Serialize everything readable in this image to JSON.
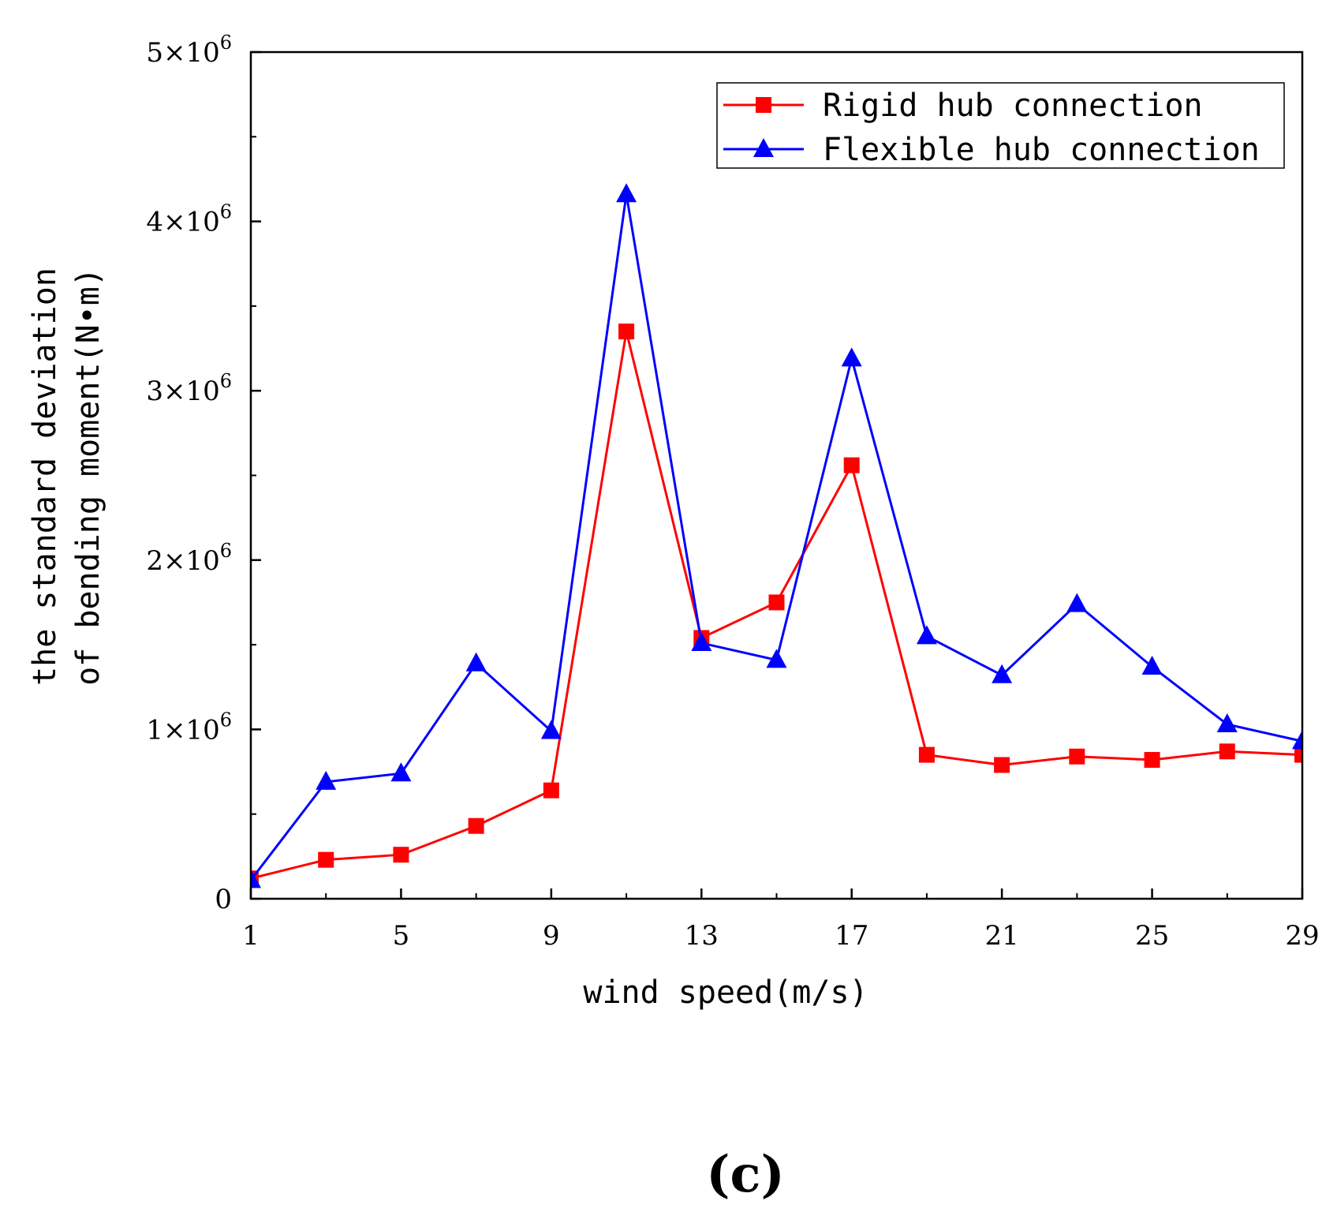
{
  "chart_data": {
    "type": "line",
    "panel_label": "(c)",
    "xlabel": "wind speed(m/s)",
    "ylabel_line1": "the standard deviation",
    "ylabel_line2": "of bending moment(N•m)",
    "x": [
      1,
      3,
      5,
      7,
      9,
      11,
      13,
      15,
      17,
      19,
      21,
      23,
      25,
      27,
      29
    ],
    "xlim": [
      1,
      29
    ],
    "ylim": [
      0,
      5000000
    ],
    "xticks": [
      {
        "value": 1,
        "label": "1"
      },
      {
        "value": 5,
        "label": "5"
      },
      {
        "value": 9,
        "label": "9"
      },
      {
        "value": 13,
        "label": "13"
      },
      {
        "value": 17,
        "label": "17"
      },
      {
        "value": 21,
        "label": "21"
      },
      {
        "value": 25,
        "label": "25"
      },
      {
        "value": 29,
        "label": "29"
      }
    ],
    "yticks": [
      {
        "value": 0,
        "mantissa": "0",
        "exponent": ""
      },
      {
        "value": 1000000,
        "mantissa": "1×10",
        "exponent": "6"
      },
      {
        "value": 2000000,
        "mantissa": "2×10",
        "exponent": "6"
      },
      {
        "value": 3000000,
        "mantissa": "3×10",
        "exponent": "6"
      },
      {
        "value": 4000000,
        "mantissa": "4×10",
        "exponent": "6"
      },
      {
        "value": 5000000,
        "mantissa": "5×10",
        "exponent": "6"
      }
    ],
    "legend_position": "top-right",
    "series": [
      {
        "name": "Rigid hub connection",
        "color": "#ff0000",
        "marker": "square",
        "values": [
          120000,
          230000,
          260000,
          430000,
          640000,
          3350000,
          1540000,
          1750000,
          2560000,
          850000,
          790000,
          840000,
          820000,
          870000,
          850000
        ]
      },
      {
        "name": "Flexible hub connection",
        "color": "#0000ff",
        "marker": "triangle",
        "values": [
          110000,
          690000,
          740000,
          1390000,
          990000,
          4160000,
          1510000,
          1410000,
          3190000,
          1550000,
          1320000,
          1740000,
          1370000,
          1030000,
          930000
        ]
      }
    ]
  }
}
